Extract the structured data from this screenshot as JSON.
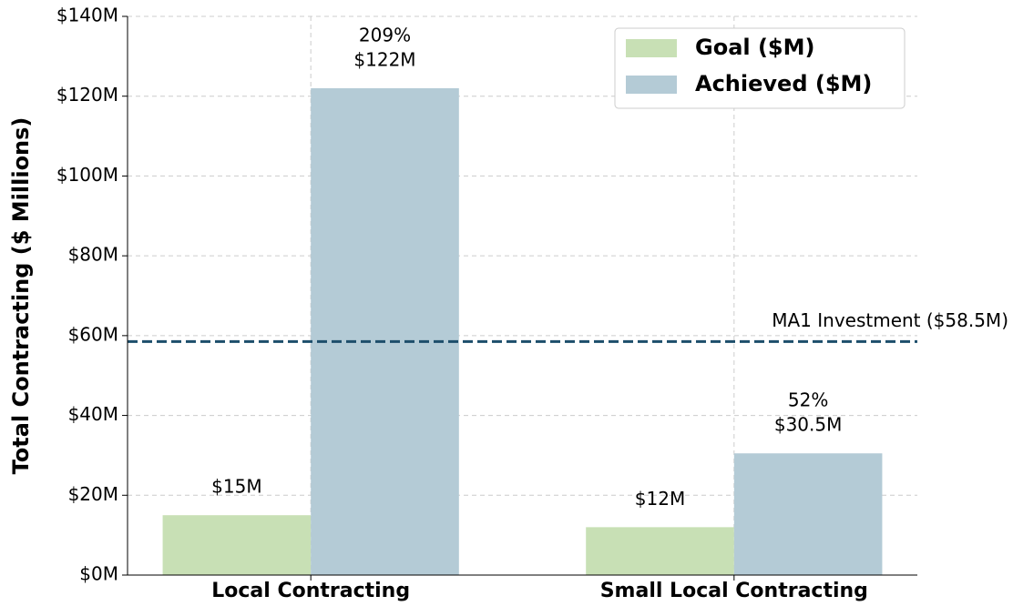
{
  "chart_data": {
    "type": "bar",
    "ylabel": "Total Contracting ($ Millions)",
    "categories": [
      "Local Contracting",
      "Small Local Contracting"
    ],
    "series": [
      {
        "name": "Goal ($M)",
        "color": "#c8e0b5",
        "values": [
          15,
          12
        ],
        "value_labels": [
          "$15M",
          "$12M"
        ]
      },
      {
        "name": "Achieved ($M)",
        "color": "#b4cbd6",
        "values": [
          122,
          30.5
        ],
        "value_labels": [
          "$122M",
          "$30.5M"
        ],
        "annotations": [
          "209%",
          "52%"
        ]
      }
    ],
    "ylim": [
      0,
      140
    ],
    "yticks": [
      {
        "value": 0,
        "label": "$0M"
      },
      {
        "value": 20,
        "label": "$20M"
      },
      {
        "value": 40,
        "label": "$40M"
      },
      {
        "value": 60,
        "label": "$60M"
      },
      {
        "value": 80,
        "label": "$80M"
      },
      {
        "value": 100,
        "label": "$100M"
      },
      {
        "value": 120,
        "label": "$120M"
      },
      {
        "value": 140,
        "label": "$140M"
      }
    ],
    "reference_line": {
      "value": 58.5,
      "label": "MA1 Investment ($58.5M)",
      "color": "#1d4e6b"
    },
    "grid": true,
    "legend": "upper right"
  }
}
